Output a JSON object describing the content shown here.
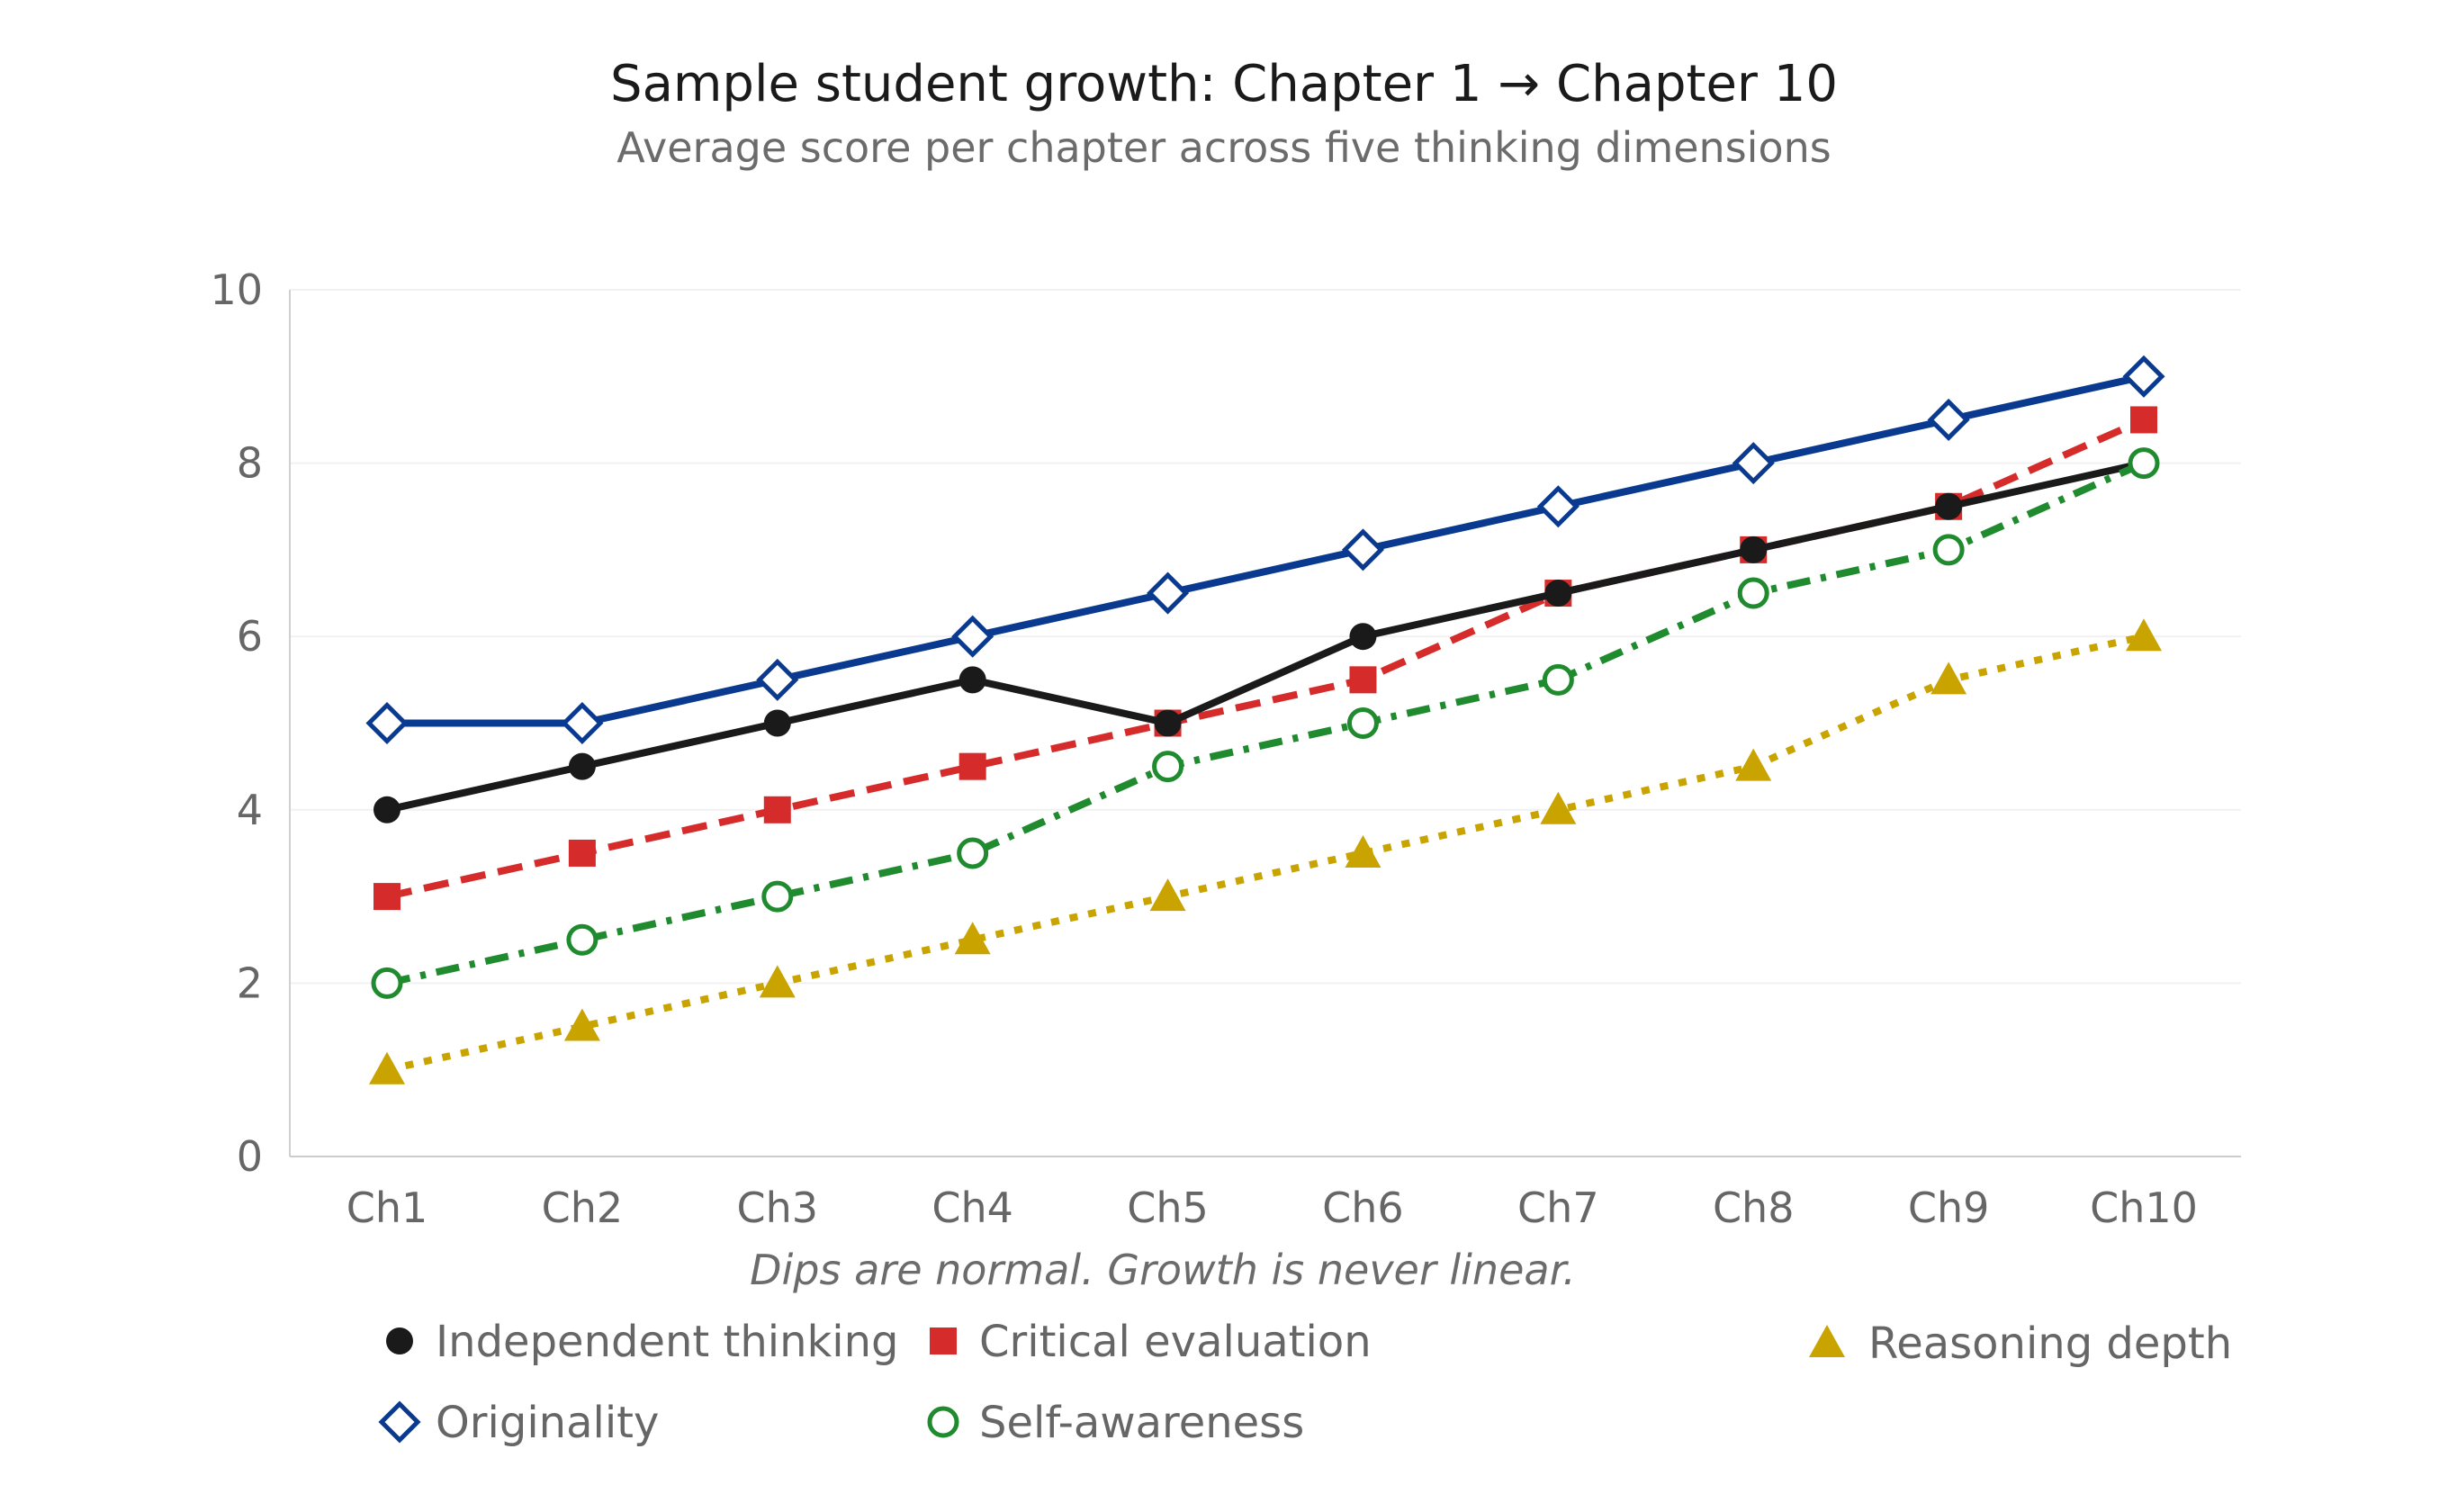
{
  "chart_data": {
    "type": "line",
    "title": "Sample student growth: Chapter 1 → Chapter 10",
    "subtitle": "Average score per chapter across five thinking dimensions",
    "xlabel": "",
    "ylabel": "",
    "categories": [
      "Ch1",
      "Ch2",
      "Ch3",
      "Ch4",
      "Ch5",
      "Ch6",
      "Ch7",
      "Ch8",
      "Ch9",
      "Ch10"
    ],
    "ylim": [
      0,
      10
    ],
    "yticks": [
      "0",
      "2",
      "4",
      "6",
      "8",
      "10"
    ],
    "grid": true,
    "legend_position": "bottom",
    "annotation": "Dips are normal. Growth is never linear.",
    "series": [
      {
        "name": "Independent thinking",
        "values": [
          4,
          4.5,
          5,
          5.5,
          5,
          6,
          6.5,
          7,
          7.5,
          8
        ],
        "color": "#1a1a1a",
        "marker": "circle",
        "style": "solid"
      },
      {
        "name": "Critical evaluation",
        "values": [
          3,
          3.5,
          4,
          4.5,
          5,
          5.5,
          6.5,
          7,
          7.5,
          8.5
        ],
        "color": "#d62b2b",
        "marker": "square",
        "style": "dashed"
      },
      {
        "name": "Reasoning depth",
        "values": [
          1,
          1.5,
          2,
          2.5,
          3,
          3.5,
          4,
          4.5,
          5.5,
          6
        ],
        "color": "#c9a400",
        "marker": "triangle",
        "style": "dotted"
      },
      {
        "name": "Originality",
        "values": [
          5,
          5,
          5.5,
          6,
          6.5,
          7,
          7.5,
          8,
          8.5,
          9
        ],
        "color": "#0a3a8f",
        "marker": "diamond-open",
        "style": "solid"
      },
      {
        "name": "Self-awareness",
        "values": [
          2,
          2.5,
          3,
          3.5,
          4.5,
          5,
          5.5,
          6.5,
          7,
          8
        ],
        "color": "#1f8a2e",
        "marker": "circle-open",
        "style": "dashdot"
      }
    ]
  }
}
